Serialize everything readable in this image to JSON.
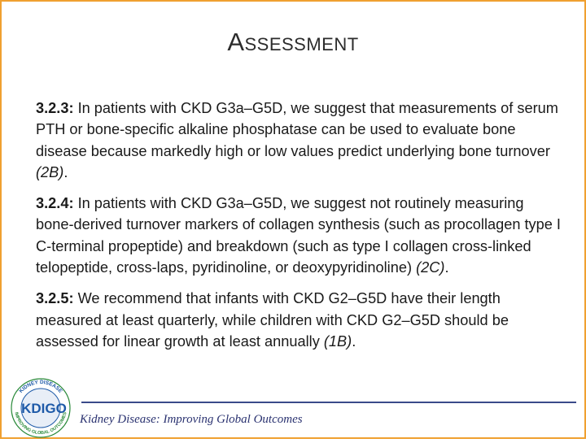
{
  "title": "Assessment",
  "recommendations": [
    {
      "number": "3.2.3:",
      "text": "In patients with CKD G3a–G5D, we suggest that measurements of serum PTH or bone-specific alkaline phosphatase can be used to evaluate bone disease because markedly high or low values predict underlying bone turnover",
      "grade": "(2B)",
      "end": "."
    },
    {
      "number": "3.2.4:",
      "text": "In patients with CKD G3a–G5D, we suggest not routinely measuring bone-derived turnover markers of collagen synthesis (such as procollagen type I C-terminal propeptide) and breakdown (such as type I collagen cross-linked telopeptide, cross-laps, pyridinoline, or deoxypyridinoline)",
      "grade": "(2C)",
      "end": "."
    },
    {
      "number": "3.2.5:",
      "text": "We recommend that infants with CKD G2–G5D have their length measured at least quarterly, while children with CKD G2–G5D should be assessed for linear growth at least annually",
      "grade": "(1B)",
      "end": "."
    }
  ],
  "footer": {
    "tagline": "Kidney Disease: Improving Global Outcomes",
    "logo_text": "KDIGO",
    "logo_ring_top": "KIDNEY DISEASE",
    "logo_ring_bottom": "IMPROVING GLOBAL OUTCOMES"
  },
  "colors": {
    "border": "#f0a030",
    "footer_rule": "#3a4a8a",
    "logo_blue": "#1e5aa8",
    "logo_green": "#2a8a3a"
  }
}
